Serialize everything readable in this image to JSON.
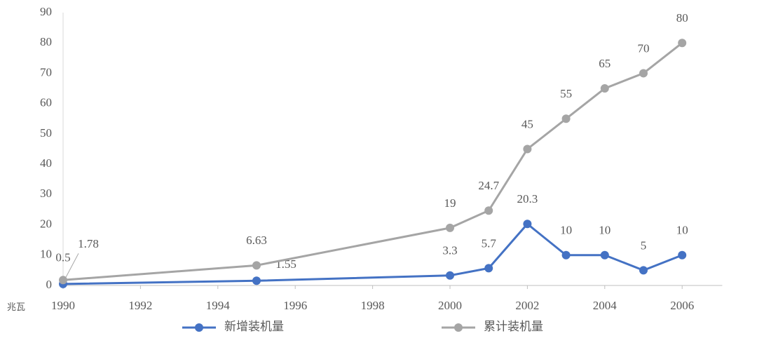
{
  "chart_data": {
    "type": "line",
    "y_unit": "兆瓦",
    "xlim": [
      1990,
      2007
    ],
    "xticks": [
      1990,
      1992,
      1994,
      1996,
      1998,
      2000,
      2002,
      2004,
      2006
    ],
    "ylim": [
      0,
      90
    ],
    "yticks": [
      0,
      10,
      20,
      30,
      40,
      50,
      60,
      70,
      80,
      90
    ],
    "legend": "bottom",
    "x": [
      1990,
      1995,
      2000,
      2001,
      2002,
      2003,
      2004,
      2005,
      2006
    ],
    "series": [
      {
        "name": "新增装机量",
        "color": "#4472c4",
        "values": [
          0.5,
          1.55,
          3.3,
          5.7,
          20.3,
          10,
          10,
          5,
          10
        ]
      },
      {
        "name": "累计装机量",
        "color": "#a5a5a5",
        "values": [
          1.78,
          6.63,
          19,
          24.7,
          45,
          55,
          65,
          70,
          80
        ]
      }
    ]
  }
}
